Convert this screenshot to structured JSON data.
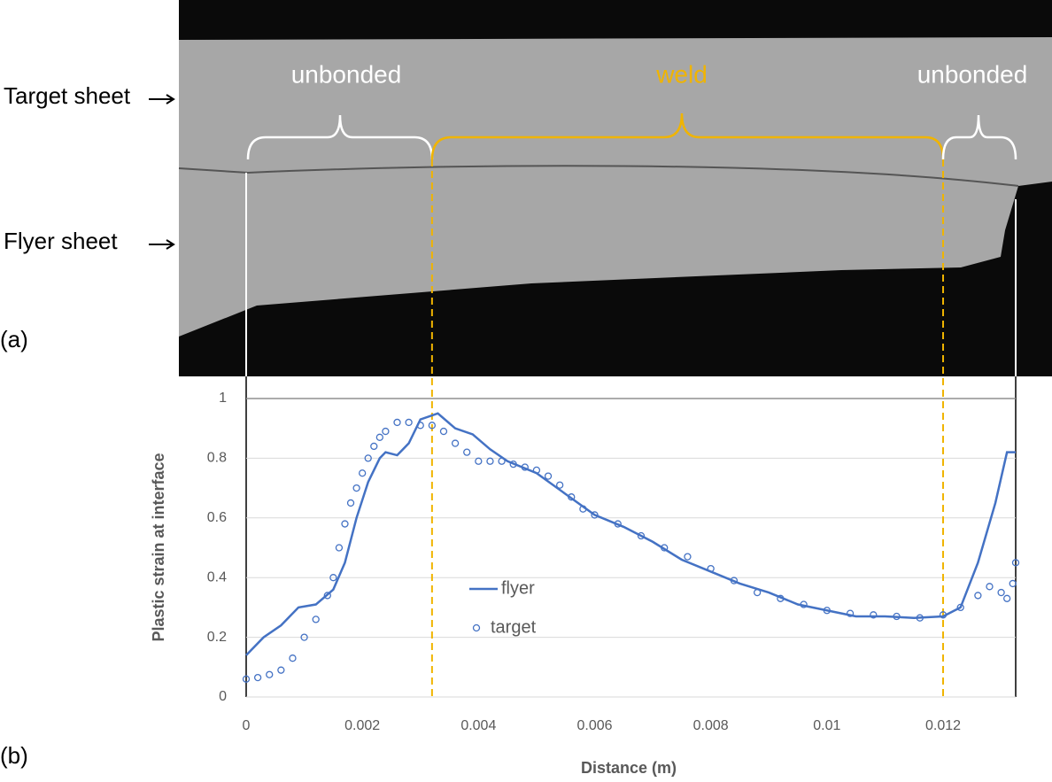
{
  "micrograph": {
    "target_label": "Target sheet",
    "flyer_label": "Flyer sheet",
    "left_region": "unbonded",
    "middle_region": "weld",
    "right_region": "unbonded",
    "panel_a": "(a)",
    "panel_b": "(b)"
  },
  "chart_data": {
    "type": "line",
    "x_label": "Distance (m)",
    "y_label": "Plastic strain at interface",
    "xlim": [
      0,
      0.01325
    ],
    "ylim": [
      0,
      1
    ],
    "xticks": [
      0,
      0.002,
      0.004,
      0.006,
      0.008,
      0.01,
      0.012
    ],
    "yticks": [
      0,
      0.2,
      0.4,
      0.6,
      0.8,
      1
    ],
    "grid": true,
    "legend": "center",
    "vlines": [
      0.0032,
      0.012
    ],
    "vline_color": "#f0b400",
    "series": [
      {
        "name": "flyer",
        "style": "line",
        "color": "#4472c4",
        "x": [
          0,
          0.0003,
          0.0006,
          0.0009,
          0.0012,
          0.0015,
          0.0017,
          0.0019,
          0.0021,
          0.0023,
          0.0024,
          0.0026,
          0.0028,
          0.003,
          0.0033,
          0.0036,
          0.0039,
          0.0042,
          0.0045,
          0.005,
          0.0055,
          0.006,
          0.0065,
          0.007,
          0.0075,
          0.008,
          0.0085,
          0.009,
          0.0095,
          0.01,
          0.0105,
          0.011,
          0.0115,
          0.012,
          0.0123,
          0.0126,
          0.0129,
          0.0131,
          0.01325
        ],
        "values": [
          0.14,
          0.2,
          0.24,
          0.3,
          0.31,
          0.36,
          0.45,
          0.6,
          0.72,
          0.8,
          0.82,
          0.81,
          0.85,
          0.93,
          0.95,
          0.9,
          0.88,
          0.83,
          0.79,
          0.75,
          0.68,
          0.61,
          0.57,
          0.52,
          0.46,
          0.42,
          0.38,
          0.35,
          0.31,
          0.29,
          0.27,
          0.27,
          0.265,
          0.27,
          0.3,
          0.45,
          0.65,
          0.82,
          0.82
        ]
      },
      {
        "name": "target",
        "style": "markers",
        "color": "#4472c4",
        "x": [
          0,
          0.0002,
          0.0004,
          0.0006,
          0.0008,
          0.001,
          0.0012,
          0.0014,
          0.0015,
          0.0016,
          0.0017,
          0.0018,
          0.0019,
          0.002,
          0.0021,
          0.0022,
          0.0023,
          0.0024,
          0.0026,
          0.0028,
          0.003,
          0.0032,
          0.0034,
          0.0036,
          0.0038,
          0.004,
          0.0042,
          0.0044,
          0.0046,
          0.0048,
          0.005,
          0.0052,
          0.0054,
          0.0056,
          0.0058,
          0.006,
          0.0064,
          0.0068,
          0.0072,
          0.0076,
          0.008,
          0.0084,
          0.0088,
          0.0092,
          0.0096,
          0.01,
          0.0104,
          0.0108,
          0.0112,
          0.0116,
          0.012,
          0.0123,
          0.0126,
          0.0128,
          0.013,
          0.0131,
          0.0132,
          0.01325
        ],
        "values": [
          0.06,
          0.065,
          0.075,
          0.09,
          0.13,
          0.2,
          0.26,
          0.34,
          0.4,
          0.5,
          0.58,
          0.65,
          0.7,
          0.75,
          0.8,
          0.84,
          0.87,
          0.89,
          0.92,
          0.92,
          0.91,
          0.91,
          0.89,
          0.85,
          0.82,
          0.79,
          0.79,
          0.79,
          0.78,
          0.77,
          0.76,
          0.74,
          0.71,
          0.67,
          0.63,
          0.61,
          0.58,
          0.54,
          0.5,
          0.47,
          0.43,
          0.39,
          0.35,
          0.33,
          0.31,
          0.29,
          0.28,
          0.275,
          0.27,
          0.265,
          0.275,
          0.3,
          0.34,
          0.37,
          0.35,
          0.33,
          0.38,
          0.45
        ]
      }
    ]
  }
}
